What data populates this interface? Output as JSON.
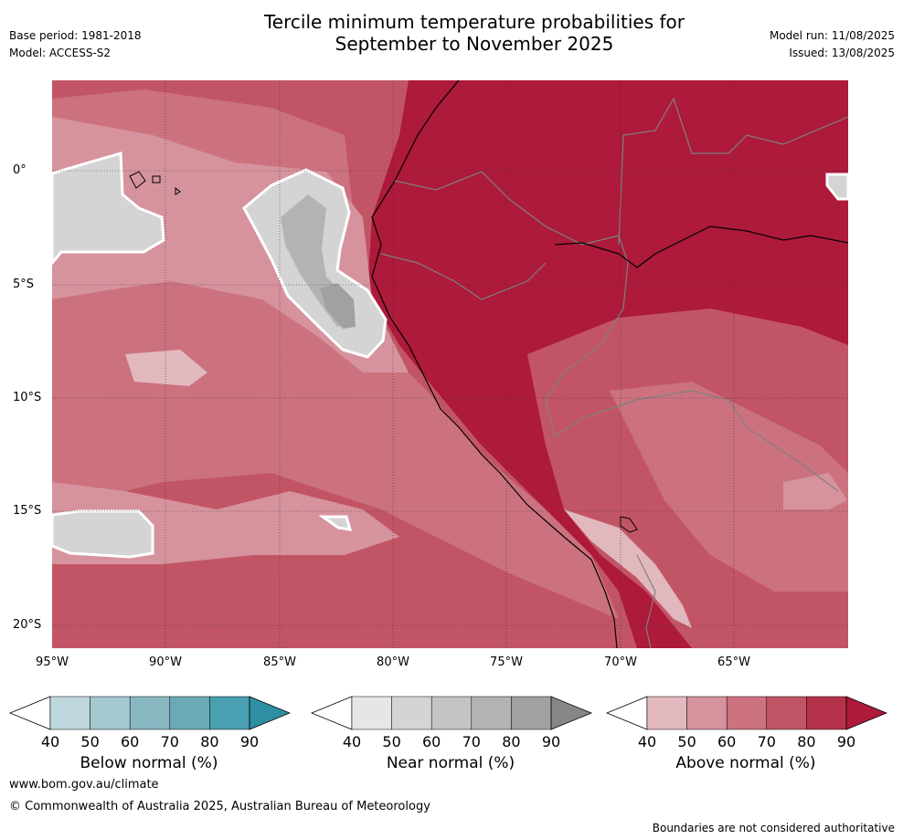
{
  "title_line1": "Tercile minimum temperature probabilities for",
  "title_line2": "September to November 2025",
  "base_period": "Base period: 1981-2018",
  "model": "Model: ACCESS-S2",
  "model_run": "Model run: 11/08/2025",
  "issued": "Issued: 13/08/2025",
  "lat_labels": [
    "0°",
    "5°S",
    "10°S",
    "15°S",
    "20°S"
  ],
  "lon_labels": [
    "95°W",
    "90°W",
    "85°W",
    "80°W",
    "75°W",
    "70°W",
    "65°W"
  ],
  "colorbars": [
    {
      "label": "Below normal (%)",
      "ticks": [
        "40",
        "50",
        "60",
        "70",
        "80",
        "90"
      ],
      "colors": [
        "#ffffff",
        "#bdd7dc",
        "#a5c8cf",
        "#89b8c3",
        "#6aa9b6",
        "#48a0b0",
        "#2e8ea3"
      ]
    },
    {
      "label": "Near normal (%)",
      "ticks": [
        "40",
        "50",
        "60",
        "70",
        "80",
        "90"
      ],
      "colors": [
        "#ffffff",
        "#e6e6e6",
        "#d4d4d4",
        "#c4c4c4",
        "#b3b3b3",
        "#a1a1a1",
        "#868686"
      ]
    },
    {
      "label": "Above normal (%)",
      "ticks": [
        "40",
        "50",
        "60",
        "70",
        "80",
        "90"
      ],
      "colors": [
        "#ffffff",
        "#e2b8bf",
        "#d6939d",
        "#cc727f",
        "#c25565",
        "#b5334a",
        "#ad1a3a"
      ]
    }
  ],
  "footer_url": "www.bom.gov.au/climate",
  "footer_copyright": "© Commonwealth of Australia 2025, Australian Bureau of Meteorology",
  "footer_note": "Boundaries are not considered authoritative"
}
